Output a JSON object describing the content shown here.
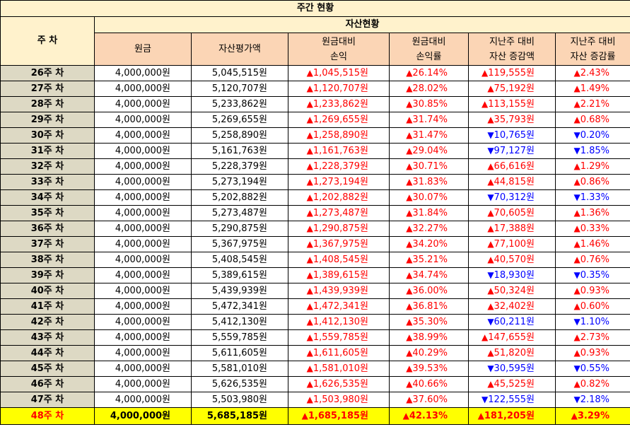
{
  "title": "주간 현황",
  "header": {
    "week": "주 차",
    "asset_group": "자산현황",
    "principal": "원금",
    "valuation": "자산평가액",
    "pl_line1": "원금대비",
    "pl_line2": "손익",
    "rate_line1": "원금대비",
    "rate_line2": "손익률",
    "wchg_line1": "지난주 대비",
    "wchg_line2": "자산 증감액",
    "wrate_line1": "지난주 대비",
    "wrate_line2": "자산 증감률"
  },
  "symbols": {
    "up": "▲",
    "down": "▼"
  },
  "colors": {
    "up": "#ff0000",
    "down": "#0000ff",
    "highlight": "#ffff00",
    "week_bg": "#ddd9c4",
    "header_bg": "#fbd5b5",
    "title_bg": "#fff2cc"
  },
  "rows": [
    {
      "week": "26주 차",
      "principal": "4,000,000원",
      "valuation": "5,045,515원",
      "pl": "1,045,515원",
      "pl_dir": "up",
      "rate": "26.14%",
      "rate_dir": "up",
      "wchg": "119,555원",
      "wchg_dir": "up",
      "wrate": "2.43%",
      "wrate_dir": "up"
    },
    {
      "week": "27주 차",
      "principal": "4,000,000원",
      "valuation": "5,120,707원",
      "pl": "1,120,707원",
      "pl_dir": "up",
      "rate": "28.02%",
      "rate_dir": "up",
      "wchg": "75,192원",
      "wchg_dir": "up",
      "wrate": "1.49%",
      "wrate_dir": "up"
    },
    {
      "week": "28주 차",
      "principal": "4,000,000원",
      "valuation": "5,233,862원",
      "pl": "1,233,862원",
      "pl_dir": "up",
      "rate": "30.85%",
      "rate_dir": "up",
      "wchg": "113,155원",
      "wchg_dir": "up",
      "wrate": "2.21%",
      "wrate_dir": "up"
    },
    {
      "week": "29주 차",
      "principal": "4,000,000원",
      "valuation": "5,269,655원",
      "pl": "1,269,655원",
      "pl_dir": "up",
      "rate": "31.74%",
      "rate_dir": "up",
      "wchg": "35,793원",
      "wchg_dir": "up",
      "wrate": "0.68%",
      "wrate_dir": "up"
    },
    {
      "week": "30주 차",
      "principal": "4,000,000원",
      "valuation": "5,258,890원",
      "pl": "1,258,890원",
      "pl_dir": "up",
      "rate": "31.47%",
      "rate_dir": "up",
      "wchg": "10,765원",
      "wchg_dir": "down",
      "wrate": "0.20%",
      "wrate_dir": "down"
    },
    {
      "week": "31주 차",
      "principal": "4,000,000원",
      "valuation": "5,161,763원",
      "pl": "1,161,763원",
      "pl_dir": "up",
      "rate": "29.04%",
      "rate_dir": "up",
      "wchg": "97,127원",
      "wchg_dir": "down",
      "wrate": "1.85%",
      "wrate_dir": "down"
    },
    {
      "week": "32주 차",
      "principal": "4,000,000원",
      "valuation": "5,228,379원",
      "pl": "1,228,379원",
      "pl_dir": "up",
      "rate": "30.71%",
      "rate_dir": "up",
      "wchg": "66,616원",
      "wchg_dir": "up",
      "wrate": "1.29%",
      "wrate_dir": "up"
    },
    {
      "week": "33주 차",
      "principal": "4,000,000원",
      "valuation": "5,273,194원",
      "pl": "1,273,194원",
      "pl_dir": "up",
      "rate": "31.83%",
      "rate_dir": "up",
      "wchg": "44,815원",
      "wchg_dir": "up",
      "wrate": "0.86%",
      "wrate_dir": "up"
    },
    {
      "week": "34주 차",
      "principal": "4,000,000원",
      "valuation": "5,202,882원",
      "pl": "1,202,882원",
      "pl_dir": "up",
      "rate": "30.07%",
      "rate_dir": "up",
      "wchg": "70,312원",
      "wchg_dir": "down",
      "wrate": "1.33%",
      "wrate_dir": "down"
    },
    {
      "week": "35주 차",
      "principal": "4,000,000원",
      "valuation": "5,273,487원",
      "pl": "1,273,487원",
      "pl_dir": "up",
      "rate": "31.84%",
      "rate_dir": "up",
      "wchg": "70,605원",
      "wchg_dir": "up",
      "wrate": "1.36%",
      "wrate_dir": "up"
    },
    {
      "week": "36주 차",
      "principal": "4,000,000원",
      "valuation": "5,290,875원",
      "pl": "1,290,875원",
      "pl_dir": "up",
      "rate": "32.27%",
      "rate_dir": "up",
      "wchg": "17,388원",
      "wchg_dir": "up",
      "wrate": "0.33%",
      "wrate_dir": "up"
    },
    {
      "week": "37주 차",
      "principal": "4,000,000원",
      "valuation": "5,367,975원",
      "pl": "1,367,975원",
      "pl_dir": "up",
      "rate": "34.20%",
      "rate_dir": "up",
      "wchg": "77,100원",
      "wchg_dir": "up",
      "wrate": "1.46%",
      "wrate_dir": "up"
    },
    {
      "week": "38주 차",
      "principal": "4,000,000원",
      "valuation": "5,408,545원",
      "pl": "1,408,545원",
      "pl_dir": "up",
      "rate": "35.21%",
      "rate_dir": "up",
      "wchg": "40,570원",
      "wchg_dir": "up",
      "wrate": "0.76%",
      "wrate_dir": "up"
    },
    {
      "week": "39주 차",
      "principal": "4,000,000원",
      "valuation": "5,389,615원",
      "pl": "1,389,615원",
      "pl_dir": "up",
      "rate": "34.74%",
      "rate_dir": "up",
      "wchg": "18,930원",
      "wchg_dir": "down",
      "wrate": "0.35%",
      "wrate_dir": "down"
    },
    {
      "week": "40주 차",
      "principal": "4,000,000원",
      "valuation": "5,439,939원",
      "pl": "1,439,939원",
      "pl_dir": "up",
      "rate": "36.00%",
      "rate_dir": "up",
      "wchg": "50,324원",
      "wchg_dir": "up",
      "wrate": "0.93%",
      "wrate_dir": "up"
    },
    {
      "week": "41주 차",
      "principal": "4,000,000원",
      "valuation": "5,472,341원",
      "pl": "1,472,341원",
      "pl_dir": "up",
      "rate": "36.81%",
      "rate_dir": "up",
      "wchg": "32,402원",
      "wchg_dir": "up",
      "wrate": "0.60%",
      "wrate_dir": "up"
    },
    {
      "week": "42주 차",
      "principal": "4,000,000원",
      "valuation": "5,412,130원",
      "pl": "1,412,130원",
      "pl_dir": "up",
      "rate": "35.30%",
      "rate_dir": "up",
      "wchg": "60,211원",
      "wchg_dir": "down",
      "wrate": "1.10%",
      "wrate_dir": "down"
    },
    {
      "week": "43주 차",
      "principal": "4,000,000원",
      "valuation": "5,559,785원",
      "pl": "1,559,785원",
      "pl_dir": "up",
      "rate": "38.99%",
      "rate_dir": "up",
      "wchg": "147,655원",
      "wchg_dir": "up",
      "wrate": "2.73%",
      "wrate_dir": "up"
    },
    {
      "week": "44주 차",
      "principal": "4,000,000원",
      "valuation": "5,611,605원",
      "pl": "1,611,605원",
      "pl_dir": "up",
      "rate": "40.29%",
      "rate_dir": "up",
      "wchg": "51,820원",
      "wchg_dir": "up",
      "wrate": "0.93%",
      "wrate_dir": "up"
    },
    {
      "week": "45주 차",
      "principal": "4,000,000원",
      "valuation": "5,581,010원",
      "pl": "1,581,010원",
      "pl_dir": "up",
      "rate": "39.53%",
      "rate_dir": "up",
      "wchg": "30,595원",
      "wchg_dir": "down",
      "wrate": "0.55%",
      "wrate_dir": "down"
    },
    {
      "week": "46주 차",
      "principal": "4,000,000원",
      "valuation": "5,626,535원",
      "pl": "1,626,535원",
      "pl_dir": "up",
      "rate": "40.66%",
      "rate_dir": "up",
      "wchg": "45,525원",
      "wchg_dir": "up",
      "wrate": "0.82%",
      "wrate_dir": "up"
    },
    {
      "week": "47주 차",
      "principal": "4,000,000원",
      "valuation": "5,503,980원",
      "pl": "1,503,980원",
      "pl_dir": "up",
      "rate": "37.60%",
      "rate_dir": "up",
      "wchg": "122,555원",
      "wchg_dir": "down",
      "wrate": "2.18%",
      "wrate_dir": "down"
    },
    {
      "week": "48주 차",
      "principal": "4,000,000원",
      "valuation": "5,685,185원",
      "pl": "1,685,185원",
      "pl_dir": "up",
      "rate": "42.13%",
      "rate_dir": "up",
      "wchg": "181,205원",
      "wchg_dir": "up",
      "wrate": "3.29%",
      "wrate_dir": "up",
      "highlight": true
    }
  ]
}
